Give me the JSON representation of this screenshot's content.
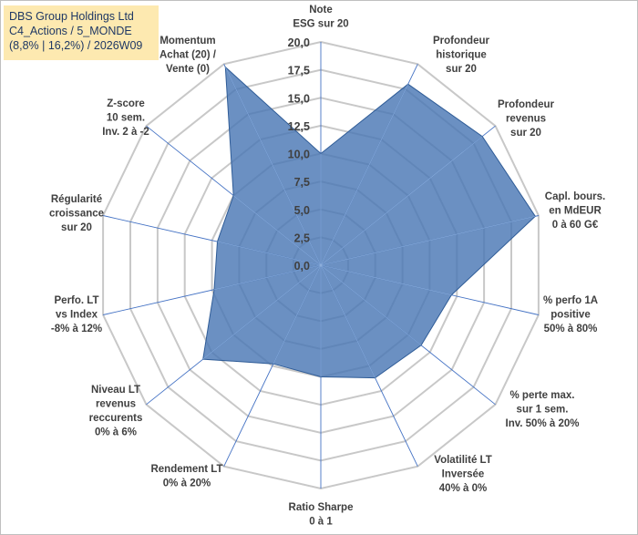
{
  "title_box": {
    "line1": "DBS Group Holdings Ltd",
    "line2": "C4_Actions / 5_MONDE",
    "line3": "(8,8% | 16,2%) / 2026W09"
  },
  "chart_data": {
    "type": "radar",
    "title": "DBS Group Holdings Ltd",
    "rmin": 0,
    "rmax": 20,
    "tick_step": 2.5,
    "ticks": [
      "0,0",
      "2,5",
      "5,0",
      "7,5",
      "10,0",
      "12,5",
      "15,0",
      "17,5",
      "20,0"
    ],
    "fill_color": "#4a78b5",
    "fill_opacity": 0.82,
    "stroke_color": "#2f5c97",
    "grid_color": "#c8c8c8",
    "spoke_color": "#4472c4",
    "axes": [
      {
        "label": [
          "Note",
          "ESG sur 20"
        ],
        "value": 10
      },
      {
        "label": [
          "Profondeur",
          "historique",
          "sur 20"
        ],
        "value": 18
      },
      {
        "label": [
          "Profondeur",
          "revenus",
          "sur 20"
        ],
        "value": 18.5
      },
      {
        "label": [
          "Capl. bours.",
          "en MdEUR",
          "0 à 60 G€"
        ],
        "value": 19.7
      },
      {
        "label": [
          "% perfo 1A",
          "positive",
          "50% à 80%"
        ],
        "value": 12
      },
      {
        "label": [
          "% perte max.",
          "sur 1 sem.",
          "Inv. 50% à 20%"
        ],
        "value": 11.5
      },
      {
        "label": [
          "Volatilité LT",
          "Inversée",
          "40% à 0%"
        ],
        "value": 11.2
      },
      {
        "label": [
          "Ratio Sharpe",
          "0 à 1"
        ],
        "value": 10
      },
      {
        "label": [
          "Rendement LT",
          "0% à 20%"
        ],
        "value": 9.8
      },
      {
        "label": [
          "Niveau LT",
          "revenus",
          "reccurents",
          "0% à 6%"
        ],
        "value": 13.5
      },
      {
        "label": [
          "Perfo. LT",
          "vs Index",
          "-8% à 12%"
        ],
        "value": 9.8
      },
      {
        "label": [
          "Régularité",
          "croissance",
          "sur 20"
        ],
        "value": 9.5
      },
      {
        "label": [
          "Z-score",
          "10 sem.",
          "Inv. 2 à -2"
        ],
        "value": 10
      },
      {
        "label": [
          "Momentum",
          "Achat (20) /",
          "Vente (0)"
        ],
        "value": 19.7
      }
    ]
  }
}
